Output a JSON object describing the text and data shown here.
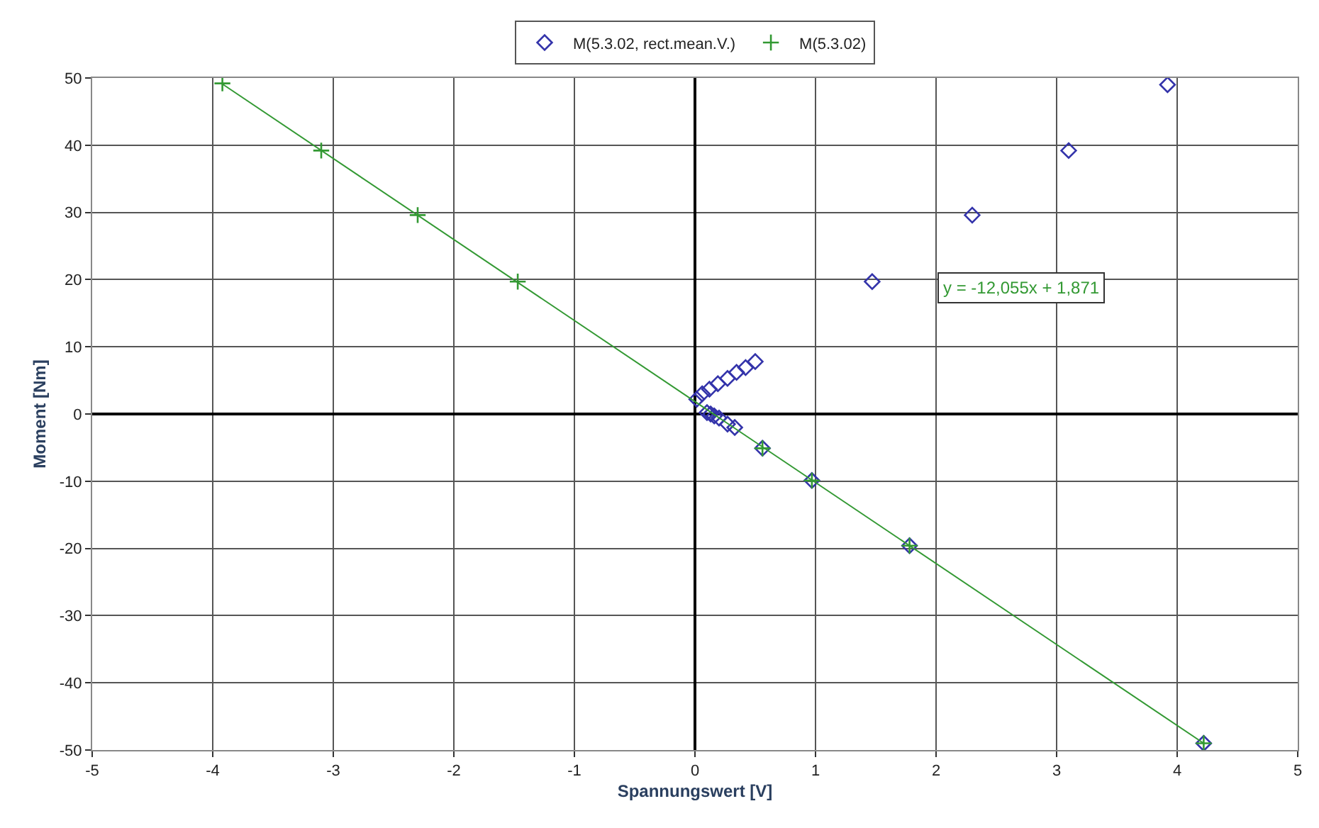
{
  "chart_data": {
    "type": "scatter",
    "xlabel": "Spannungswert [V]",
    "ylabel": "Moment [Nm]",
    "xlim": [
      -5,
      5
    ],
    "xticks": [
      -5,
      -4,
      -3,
      -2,
      -1,
      0,
      1,
      2,
      3,
      4,
      5
    ],
    "ylim": [
      -50,
      50
    ],
    "yticks": [
      -50,
      -40,
      -30,
      -20,
      -10,
      0,
      10,
      20,
      30,
      40,
      50
    ],
    "grid": true,
    "legend": "top",
    "series": [
      {
        "name": "M(5.3.02, rect.mean.V.)",
        "color": "#3333aa",
        "marker": "diamond",
        "x": [
          3.92,
          3.1,
          2.3,
          1.47,
          0.5,
          0.42,
          0.345,
          0.27,
          0.19,
          0.12,
          0.06,
          0.015,
          0.1,
          0.13,
          0.16,
          0.2,
          0.27,
          0.33,
          0.56,
          0.97,
          1.78,
          4.22
        ],
        "values": [
          49,
          39.2,
          29.6,
          19.7,
          7.8,
          6.9,
          6.2,
          5.3,
          4.5,
          3.7,
          3.0,
          2.2,
          0.2,
          0,
          -0.3,
          -0.6,
          -1.5,
          -2.0,
          -5.1,
          -9.9,
          -19.6,
          -49
        ]
      },
      {
        "name": "M(5.3.02)",
        "color": "#339933",
        "marker": "cross",
        "x": [
          -3.92,
          -3.1,
          -2.3,
          -1.47,
          0.56,
          0.97,
          1.78,
          4.22
        ],
        "values": [
          49.2,
          39.2,
          29.6,
          19.7,
          -5.1,
          -9.9,
          -19.6,
          -49
        ]
      },
      {
        "type": "line",
        "color": "#339933",
        "marker": "none",
        "x": [
          -3.92,
          4.22
        ],
        "values": [
          49.1,
          -49
        ]
      }
    ],
    "annotations": [
      "y = -12,055x + 1,871"
    ]
  }
}
